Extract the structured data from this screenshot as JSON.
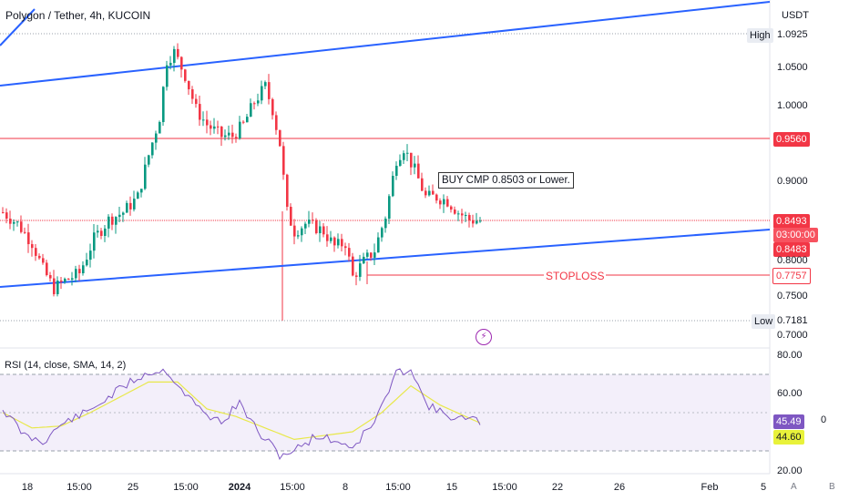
{
  "header": {
    "title": "Polygon / Tether, 4h, KUCOIN",
    "currency": "USDT"
  },
  "price_axis": {
    "ticks": [
      "1.0500",
      "1.0000",
      "0.9000",
      "0.8000",
      "0.7500",
      "0.7000"
    ],
    "high_label": "High",
    "high_value": "1.0925",
    "low_label": "Low",
    "low_value": "0.7181",
    "resistance_value": "0.9560",
    "last_price": "0.8493",
    "countdown": "03:00:00",
    "bid_value": "0.8483",
    "stoploss_value": "0.7757"
  },
  "annotations": {
    "buy_note": "BUY CMP 0.8503 or Lower.",
    "stoploss_text": "STOPLOSS"
  },
  "rsi": {
    "title": "RSI (14, close, SMA, 14, 2)",
    "ticks": [
      "80.00",
      "60.00",
      "20.00"
    ],
    "rsi_value": "45.49",
    "sma_value": "44.60",
    "extra_label": "0"
  },
  "time_axis": {
    "ticks": [
      "18",
      "15:00",
      "25",
      "15:00",
      "2024",
      "15:00",
      "8",
      "15:00",
      "15",
      "15:00",
      "22",
      "26",
      "Feb",
      "5"
    ]
  },
  "corner_buttons": [
    "A",
    "B"
  ],
  "colors": {
    "up": "#089981",
    "down": "#f23645",
    "trendline": "#2962ff",
    "rsi_line": "#7e57c2",
    "rsi_sma": "#e8e84a",
    "rsi_band": "#f3effa"
  },
  "chart_data": {
    "type": "candlestick",
    "symbol": "Polygon / Tether",
    "interval": "4h",
    "exchange": "KUCOIN",
    "price_range": [
      0.7,
      1.1
    ],
    "levels": {
      "high": 1.0925,
      "resistance": 0.956,
      "last": 0.8493,
      "bid": 0.8483,
      "stoploss": 0.7757,
      "low": 0.7181
    },
    "trend_channel": {
      "upper": {
        "start": [
          0,
          1.025
        ],
        "end": [
          234,
          1.125
        ]
      },
      "lower": {
        "start": [
          0,
          0.757
        ],
        "end": [
          234,
          0.842
        ]
      }
    },
    "price_path": [
      [
        0,
        0.86
      ],
      [
        4,
        0.845
      ],
      [
        8,
        0.82
      ],
      [
        11,
        0.785
      ],
      [
        14,
        0.76
      ],
      [
        17,
        0.77
      ],
      [
        21,
        0.78
      ],
      [
        25,
        0.825
      ],
      [
        29,
        0.85
      ],
      [
        33,
        0.86
      ],
      [
        37,
        0.88
      ],
      [
        40,
        0.935
      ],
      [
        43,
        0.985
      ],
      [
        45,
        1.06
      ],
      [
        47,
        1.07
      ],
      [
        50,
        1.04
      ],
      [
        53,
        0.995
      ],
      [
        56,
        0.975
      ],
      [
        60,
        0.96
      ],
      [
        63,
        0.96
      ],
      [
        66,
        0.975
      ],
      [
        69,
        1.005
      ],
      [
        72,
        1.025
      ],
      [
        74,
        0.995
      ],
      [
        76,
        0.95
      ],
      [
        78,
        0.86
      ],
      [
        80,
        0.835
      ],
      [
        83,
        0.845
      ],
      [
        86,
        0.84
      ],
      [
        88,
        0.835
      ],
      [
        91,
        0.815
      ],
      [
        94,
        0.82
      ],
      [
        96,
        0.775
      ],
      [
        99,
        0.795
      ],
      [
        102,
        0.81
      ],
      [
        105,
        0.855
      ],
      [
        108,
        0.93
      ],
      [
        110,
        0.945
      ],
      [
        113,
        0.915
      ],
      [
        116,
        0.88
      ],
      [
        119,
        0.88
      ],
      [
        122,
        0.875
      ],
      [
        125,
        0.86
      ],
      [
        128,
        0.85
      ],
      [
        131,
        0.849
      ]
    ],
    "rsi_range": [
      20,
      80
    ],
    "rsi_bands": [
      30,
      50,
      70
    ],
    "rsi_path": [
      [
        0,
        52
      ],
      [
        6,
        38
      ],
      [
        11,
        35
      ],
      [
        17,
        45
      ],
      [
        23,
        50
      ],
      [
        29,
        58
      ],
      [
        35,
        66
      ],
      [
        40,
        71
      ],
      [
        45,
        72
      ],
      [
        50,
        60
      ],
      [
        55,
        50
      ],
      [
        60,
        45
      ],
      [
        65,
        55
      ],
      [
        70,
        40
      ],
      [
        76,
        28
      ],
      [
        80,
        30
      ],
      [
        86,
        38
      ],
      [
        92,
        35
      ],
      [
        96,
        32
      ],
      [
        102,
        45
      ],
      [
        108,
        70
      ],
      [
        112,
        74
      ],
      [
        116,
        55
      ],
      [
        120,
        50
      ],
      [
        125,
        47
      ],
      [
        131,
        45.49
      ]
    ],
    "rsi_sma_path": [
      [
        0,
        50
      ],
      [
        8,
        42
      ],
      [
        16,
        43
      ],
      [
        24,
        50
      ],
      [
        32,
        58
      ],
      [
        40,
        66
      ],
      [
        48,
        66
      ],
      [
        56,
        52
      ],
      [
        64,
        48
      ],
      [
        72,
        42
      ],
      [
        80,
        36
      ],
      [
        88,
        38
      ],
      [
        96,
        40
      ],
      [
        104,
        50
      ],
      [
        112,
        64
      ],
      [
        120,
        54
      ],
      [
        131,
        44.6
      ]
    ]
  }
}
